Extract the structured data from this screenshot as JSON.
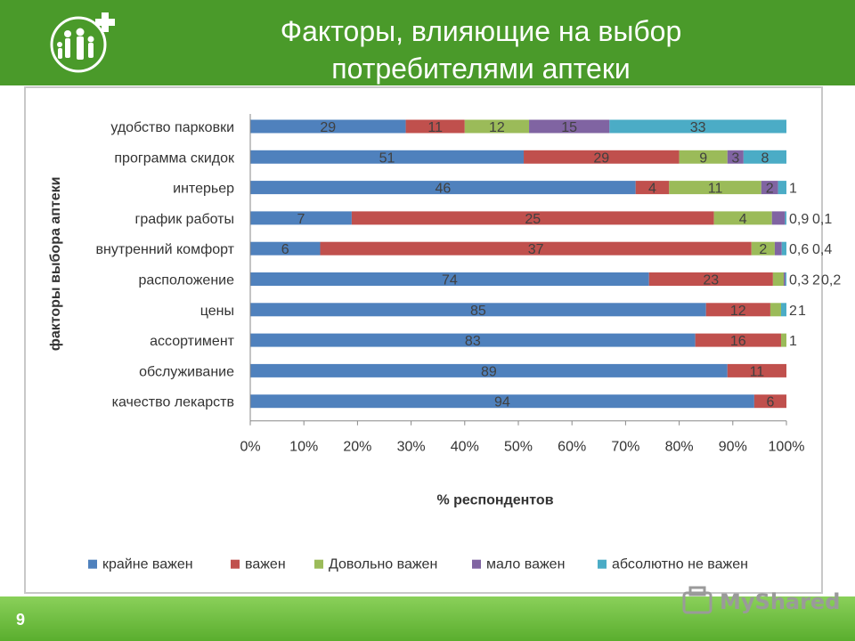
{
  "header": {
    "title_line1": "Факторы, влияющие на выбор",
    "title_line2": "потребителями аптеки"
  },
  "page_number": "9",
  "watermark": "MyShared",
  "colors": {
    "header_green": "#4a9a2a",
    "series": [
      "#4f81bd",
      "#c0504d",
      "#9bbb59",
      "#8064a2",
      "#4bacc6"
    ]
  },
  "chart_data": {
    "type": "bar",
    "orientation": "horizontal",
    "stacked": true,
    "percent_stacked": true,
    "categories": [
      "удобство парковки",
      "программа скидок",
      "интерьер",
      "график работы",
      "внутренний комфорт",
      "расположение",
      "цены",
      "ассортимент",
      "обслуживание",
      "качество лекарств"
    ],
    "series": [
      {
        "name": "крайне важен",
        "values": [
          29,
          51,
          46,
          7,
          6,
          74,
          85,
          83,
          89,
          94
        ]
      },
      {
        "name": "важен",
        "values": [
          11,
          29,
          4,
          25,
          37,
          23,
          12,
          16,
          11,
          6
        ]
      },
      {
        "name": "Довольно важен",
        "values": [
          12,
          9,
          11,
          4,
          2,
          2,
          2,
          1,
          0,
          0
        ]
      },
      {
        "name": "мало важен",
        "values": [
          15,
          3,
          2,
          0.9,
          0.6,
          0.3,
          0,
          0,
          0,
          0
        ]
      },
      {
        "name": "абсолютно не важен",
        "values": [
          33,
          8,
          1,
          0.1,
          0.4,
          0.2,
          1,
          0,
          0,
          0
        ]
      }
    ],
    "data_labels": [
      [
        {
          "s": 0,
          "t": "29"
        },
        {
          "s": 1,
          "t": "11"
        },
        {
          "s": 2,
          "t": "12"
        },
        {
          "s": 3,
          "t": "15"
        },
        {
          "s": 4,
          "t": "33"
        }
      ],
      [
        {
          "s": 0,
          "t": "51"
        },
        {
          "s": 1,
          "t": "29"
        },
        {
          "s": 2,
          "t": "9"
        },
        {
          "s": 3,
          "t": "3"
        },
        {
          "s": 4,
          "t": "8"
        }
      ],
      [
        {
          "s": 0,
          "t": "46"
        },
        {
          "s": 1,
          "t": "4"
        },
        {
          "s": 2,
          "t": "11"
        },
        {
          "s": 3,
          "t": "2"
        },
        {
          "s": 4,
          "t": "1"
        }
      ],
      [
        {
          "s": 0,
          "t": "7"
        },
        {
          "s": 1,
          "t": "25"
        },
        {
          "s": 2,
          "t": "4"
        },
        {
          "s": 3,
          "t": "0,9"
        },
        {
          "s": 4,
          "t": "0,1"
        }
      ],
      [
        {
          "s": 0,
          "t": "6"
        },
        {
          "s": 1,
          "t": "37"
        },
        {
          "s": 2,
          "t": "2"
        },
        {
          "s": 3,
          "t": "0,6"
        },
        {
          "s": 4,
          "t": "0,4"
        }
      ],
      [
        {
          "s": 0,
          "t": "74"
        },
        {
          "s": 1,
          "t": "23"
        },
        {
          "s": 3,
          "t": "0,3"
        },
        {
          "s": 2,
          "t": "2"
        },
        {
          "s": 4,
          "t": "0,2"
        }
      ],
      [
        {
          "s": 0,
          "t": "85"
        },
        {
          "s": 1,
          "t": "12"
        },
        {
          "s": 2,
          "t": "2"
        },
        {
          "s": 4,
          "t": "1"
        }
      ],
      [
        {
          "s": 0,
          "t": "83"
        },
        {
          "s": 1,
          "t": "16"
        },
        {
          "s": 2,
          "t": "1"
        }
      ],
      [
        {
          "s": 0,
          "t": "89"
        },
        {
          "s": 1,
          "t": "11"
        }
      ],
      [
        {
          "s": 0,
          "t": "94"
        },
        {
          "s": 1,
          "t": "6"
        }
      ]
    ],
    "x_ticks": [
      "0%",
      "10%",
      "20%",
      "30%",
      "40%",
      "50%",
      "60%",
      "70%",
      "80%",
      "90%",
      "100%"
    ],
    "xlim": [
      0,
      100
    ],
    "xlabel": "% респондентов",
    "ylabel": "факторы выбора аптеки",
    "grid": false,
    "legend_position": "bottom"
  }
}
